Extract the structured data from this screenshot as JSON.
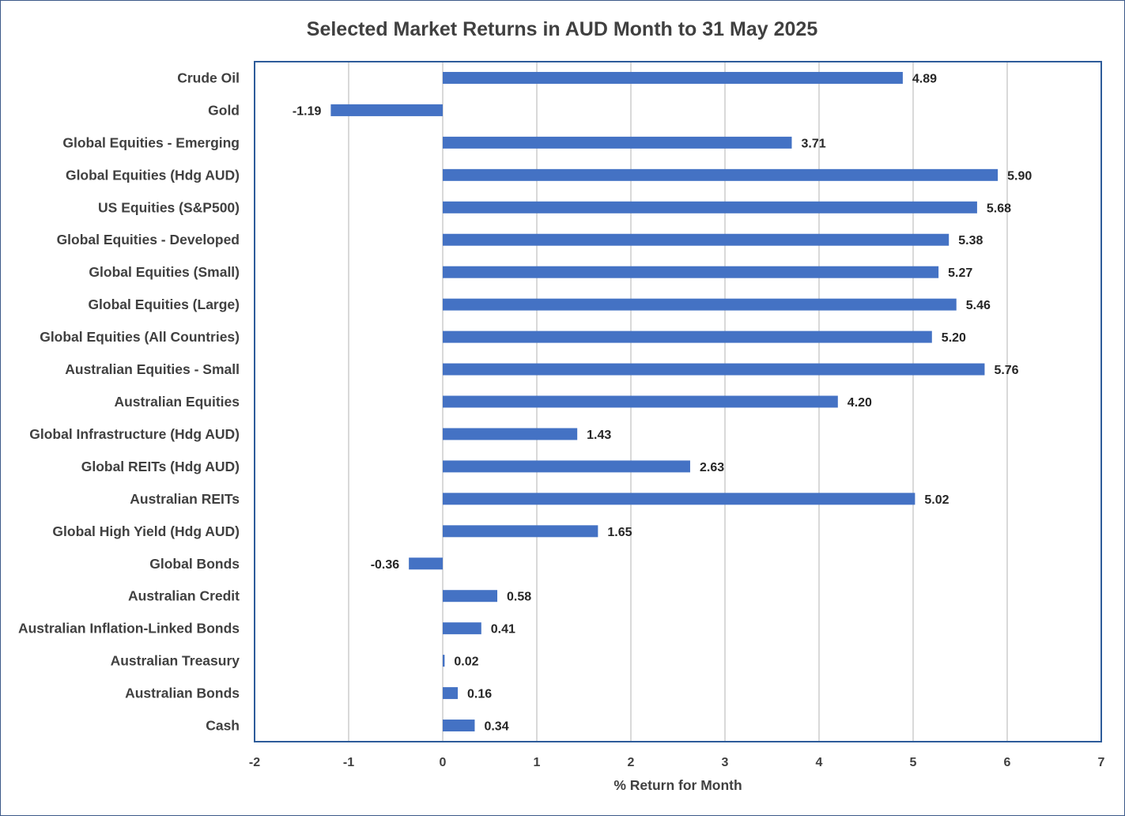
{
  "chart_data": {
    "type": "bar",
    "orientation": "horizontal",
    "title": "Selected Market Returns in AUD Month to 31 May 2025",
    "xlabel": "% Return for Month",
    "ylabel": "",
    "xlim": [
      -2,
      7
    ],
    "xticks": [
      -2,
      -1,
      0,
      1,
      2,
      3,
      4,
      5,
      6,
      7
    ],
    "grid": "vertical",
    "bar_color": "#4472c4",
    "plot_border_color": "#2e5c9a",
    "categories": [
      "Crude Oil",
      "Gold",
      "Global Equities - Emerging",
      "Global Equities (Hdg AUD)",
      "US Equities (S&P500)",
      "Global Equities - Developed",
      "Global Equities (Small)",
      "Global Equities (Large)",
      "Global Equities (All Countries)",
      "Australian Equities - Small",
      "Australian Equities",
      "Global Infrastructure (Hdg AUD)",
      "Global REITs (Hdg AUD)",
      "Australian REITs",
      "Global High Yield (Hdg AUD)",
      "Global Bonds",
      "Australian Credit",
      "Australian Inflation-Linked Bonds",
      "Australian Treasury",
      "Australian Bonds",
      "Cash"
    ],
    "values": [
      4.89,
      -1.19,
      3.71,
      5.9,
      5.68,
      5.38,
      5.27,
      5.46,
      5.2,
      5.76,
      4.2,
      1.43,
      2.63,
      5.02,
      1.65,
      -0.36,
      0.58,
      0.41,
      0.02,
      0.16,
      0.34
    ],
    "data_labels": [
      "4.89",
      "-1.19",
      "3.71",
      "5.90",
      "5.68",
      "5.38",
      "5.27",
      "5.46",
      "5.20",
      "5.76",
      "4.20",
      "1.43",
      "2.63",
      "5.02",
      "1.65",
      "-0.36",
      "0.58",
      "0.41",
      "0.02",
      "0.16",
      "0.34"
    ]
  }
}
